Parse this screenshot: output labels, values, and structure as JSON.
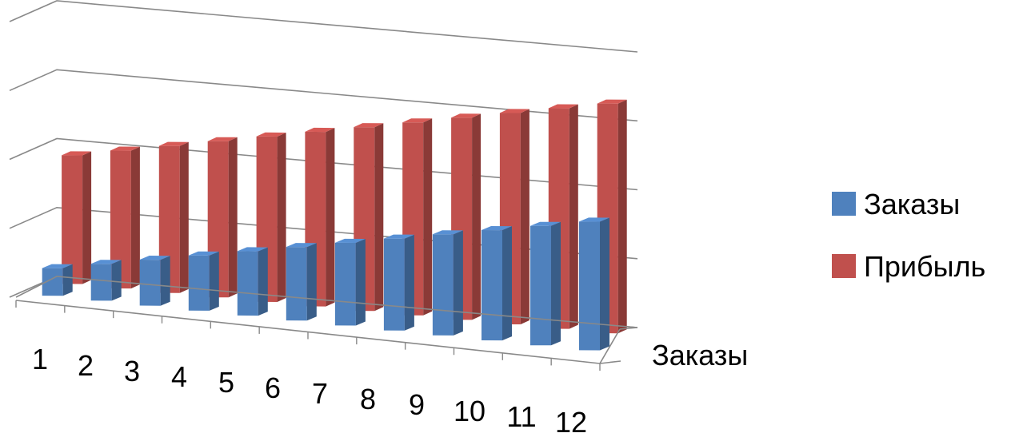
{
  "chart_data": {
    "type": "bar",
    "categories": [
      "1",
      "2",
      "3",
      "4",
      "5",
      "6",
      "7",
      "8",
      "9",
      "10",
      "11",
      "12"
    ],
    "series": [
      {
        "name": "Заказы",
        "color": "#4f81bd",
        "values": [
          3,
          4,
          5,
          6,
          7,
          8,
          9,
          10,
          11,
          12,
          13,
          14
        ]
      },
      {
        "name": "Прибыль",
        "color": "#c0504d",
        "values": [
          14,
          15,
          16,
          17,
          18,
          19,
          20,
          21,
          22,
          23,
          24,
          25
        ]
      }
    ],
    "depth_axis_label": "Заказы",
    "ylim": [
      0,
      30
    ],
    "legend_position": "right",
    "grid": true
  }
}
